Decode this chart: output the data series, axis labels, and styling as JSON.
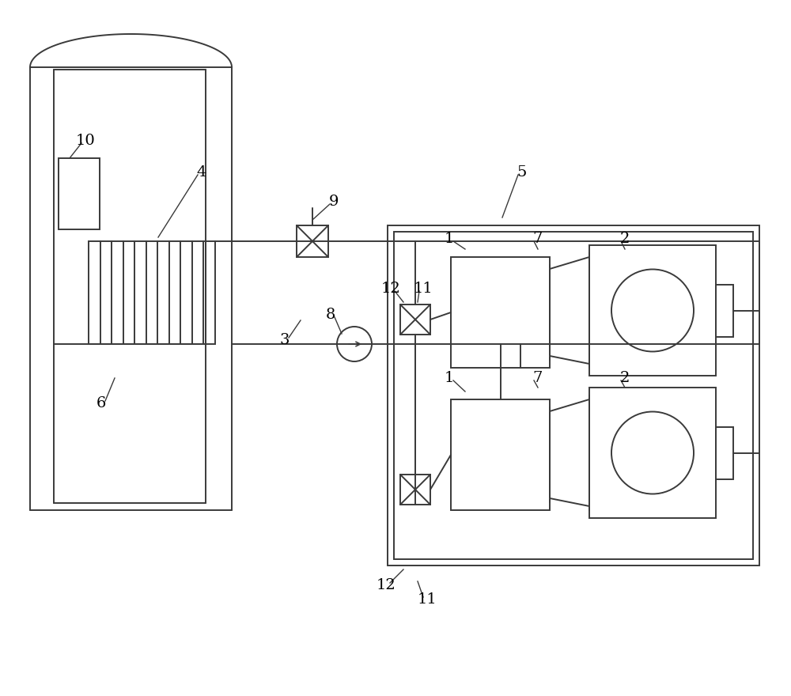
{
  "bg_color": "#ffffff",
  "line_color": "#3a3a3a",
  "lw": 1.4,
  "lw_thin": 1.0
}
